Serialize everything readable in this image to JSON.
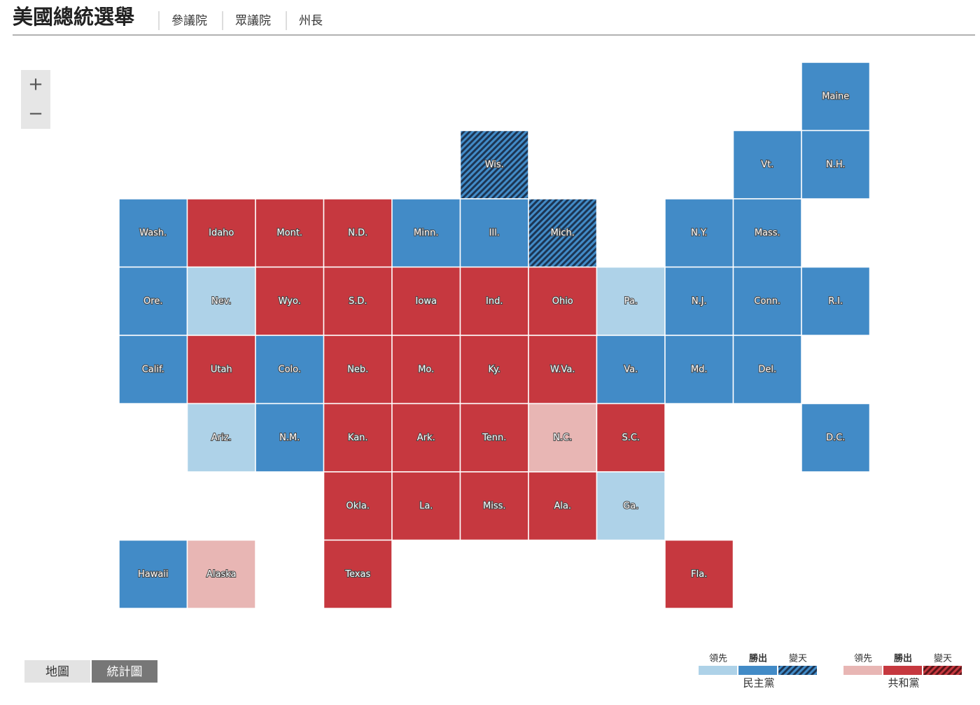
{
  "header": {
    "title": "美國總統選舉",
    "nav": [
      "參議院",
      "眾議院",
      "州長"
    ]
  },
  "zoom": {
    "in": "+",
    "out": "−"
  },
  "grid": {
    "rows": [
      [
        null,
        null,
        null,
        null,
        null,
        null,
        null,
        null,
        null,
        null,
        {
          "label": "Maine",
          "status": "dem-win"
        }
      ],
      [
        null,
        null,
        null,
        null,
        null,
        {
          "label": "Wis.",
          "status": "dem-flip"
        },
        null,
        null,
        null,
        {
          "label": "Vt.",
          "status": "dem-win"
        },
        {
          "label": "N.H.",
          "status": "dem-win"
        }
      ],
      [
        {
          "label": "Wash.",
          "status": "dem-win"
        },
        {
          "label": "Idaho",
          "status": "rep-win"
        },
        {
          "label": "Mont.",
          "status": "rep-win"
        },
        {
          "label": "N.D.",
          "status": "rep-win"
        },
        {
          "label": "Minn.",
          "status": "dem-win"
        },
        {
          "label": "Ill.",
          "status": "dem-win"
        },
        {
          "label": "Mich.",
          "status": "dem-flip"
        },
        null,
        {
          "label": "N.Y.",
          "status": "dem-win"
        },
        {
          "label": "Mass.",
          "status": "dem-win"
        },
        null
      ],
      [
        {
          "label": "Ore.",
          "status": "dem-win"
        },
        {
          "label": "Nev.",
          "status": "dem-lead"
        },
        {
          "label": "Wyo.",
          "status": "rep-win"
        },
        {
          "label": "S.D.",
          "status": "rep-win"
        },
        {
          "label": "Iowa",
          "status": "rep-win"
        },
        {
          "label": "Ind.",
          "status": "rep-win"
        },
        {
          "label": "Ohio",
          "status": "rep-win"
        },
        {
          "label": "Pa.",
          "status": "dem-lead"
        },
        {
          "label": "N.J.",
          "status": "dem-win"
        },
        {
          "label": "Conn.",
          "status": "dem-win"
        },
        {
          "label": "R.I.",
          "status": "dem-win"
        }
      ],
      [
        {
          "label": "Calif.",
          "status": "dem-win"
        },
        {
          "label": "Utah",
          "status": "rep-win"
        },
        {
          "label": "Colo.",
          "status": "dem-win"
        },
        {
          "label": "Neb.",
          "status": "rep-win"
        },
        {
          "label": "Mo.",
          "status": "rep-win"
        },
        {
          "label": "Ky.",
          "status": "rep-win"
        },
        {
          "label": "W.Va.",
          "status": "rep-win"
        },
        {
          "label": "Va.",
          "status": "dem-win"
        },
        {
          "label": "Md.",
          "status": "dem-win"
        },
        {
          "label": "Del.",
          "status": "dem-win"
        },
        null
      ],
      [
        null,
        {
          "label": "Ariz.",
          "status": "dem-lead"
        },
        {
          "label": "N.M.",
          "status": "dem-win"
        },
        {
          "label": "Kan.",
          "status": "rep-win"
        },
        {
          "label": "Ark.",
          "status": "rep-win"
        },
        {
          "label": "Tenn.",
          "status": "rep-win"
        },
        {
          "label": "N.C.",
          "status": "rep-lead"
        },
        {
          "label": "S.C.",
          "status": "rep-win"
        },
        null,
        null,
        {
          "label": "D.C.",
          "status": "dem-win"
        }
      ],
      [
        null,
        null,
        null,
        {
          "label": "Okla.",
          "status": "rep-win"
        },
        {
          "label": "La.",
          "status": "rep-win"
        },
        {
          "label": "Miss.",
          "status": "rep-win"
        },
        {
          "label": "Ala.",
          "status": "rep-win"
        },
        {
          "label": "Ga.",
          "status": "dem-lead"
        },
        null,
        null,
        null
      ],
      [
        {
          "label": "Hawaii",
          "status": "dem-win"
        },
        {
          "label": "Alaska",
          "status": "rep-lead"
        },
        null,
        {
          "label": "Texas",
          "status": "rep-win"
        },
        null,
        null,
        null,
        null,
        {
          "label": "Fla.",
          "status": "rep-win"
        },
        null,
        null
      ]
    ]
  },
  "view_toggle": {
    "options": [
      "地圖",
      "統計圖"
    ],
    "active": 1
  },
  "legend": [
    {
      "party": "民主黨",
      "items": [
        {
          "label": "領先",
          "status": "dem-lead"
        },
        {
          "label": "勝出",
          "status": "dem-win"
        },
        {
          "label": "變天",
          "status": "dem-flip"
        }
      ]
    },
    {
      "party": "共和黨",
      "items": [
        {
          "label": "領先",
          "status": "rep-lead"
        },
        {
          "label": "勝出",
          "status": "rep-win"
        },
        {
          "label": "變天",
          "status": "rep-flip"
        }
      ]
    }
  ]
}
